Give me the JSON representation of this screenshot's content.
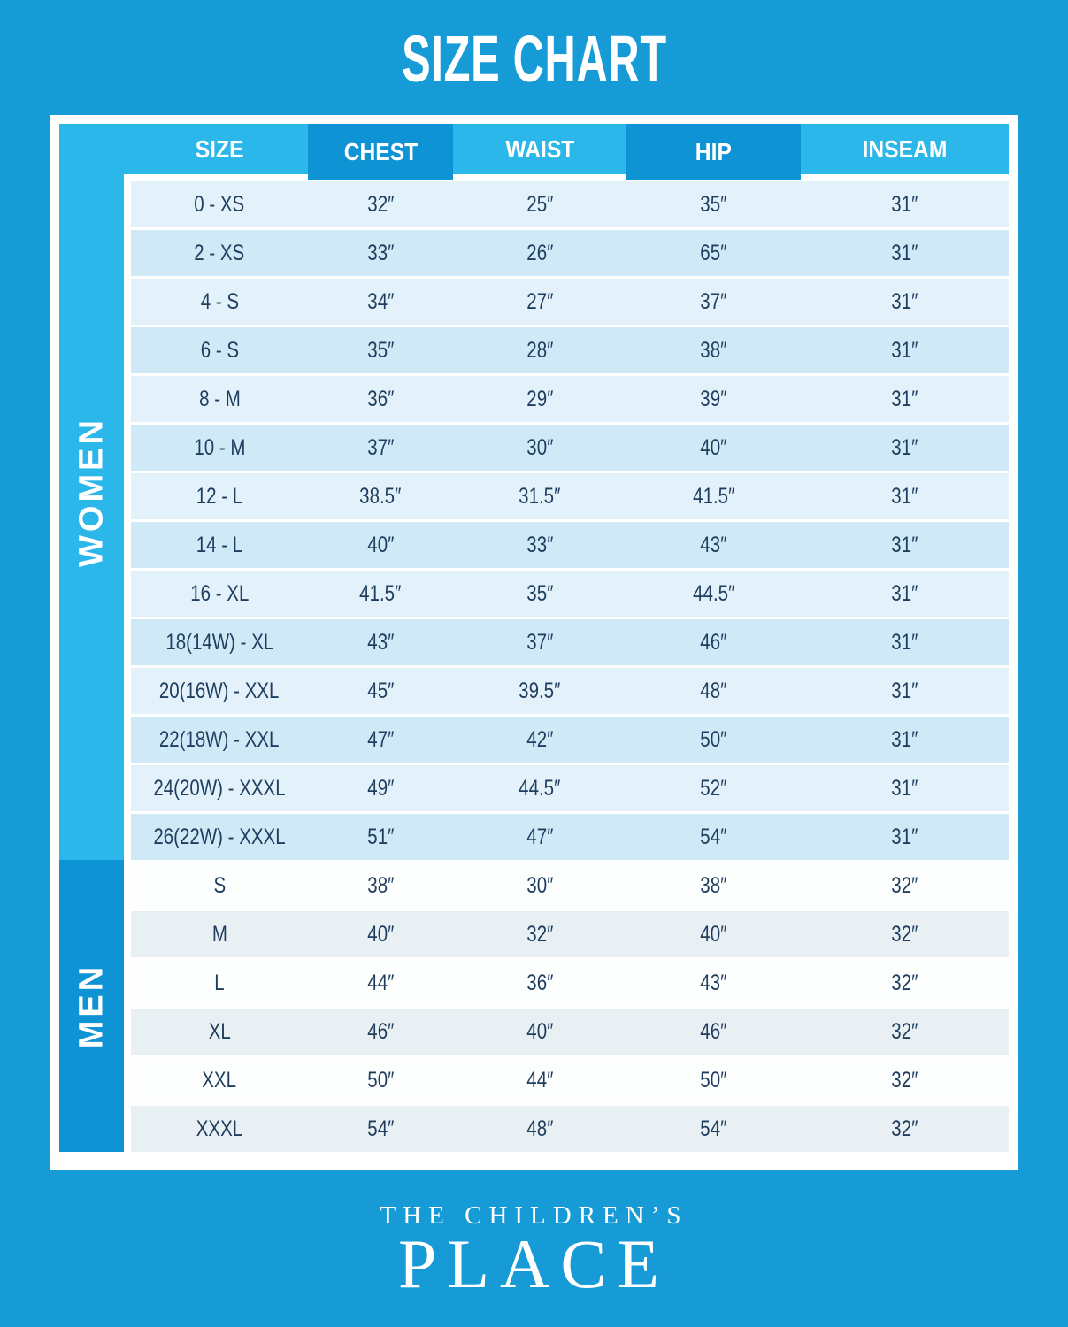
{
  "page": {
    "title": "SIZE CHART"
  },
  "footer": {
    "line1": "THE CHILDREN’S",
    "line2": "PLACE"
  },
  "colors": {
    "page_background": "#169BD7",
    "accent_light": "#2BB7E9",
    "accent_dark": "#0E93D4",
    "row_women_light": "#E3F2FA",
    "row_women_dark": "#CFE9F6",
    "row_men_light": "#FDFEFE",
    "row_men_dark": "#E9F0F4",
    "cell_text": "#1F3E5F",
    "header_text": "#FFFFFF"
  },
  "chart_data": {
    "type": "table",
    "title": "SIZE CHART",
    "columns": [
      "SIZE",
      "CHEST",
      "WAIST",
      "HIP",
      "INSEAM"
    ],
    "sections": [
      {
        "label": "WOMEN",
        "rows": [
          [
            "0 - XS",
            "32″",
            "25″",
            "35″",
            "31″"
          ],
          [
            "2 - XS",
            "33″",
            "26″",
            "65″",
            "31″"
          ],
          [
            "4 - S",
            "34″",
            "27″",
            "37″",
            "31″"
          ],
          [
            "6 - S",
            "35″",
            "28″",
            "38″",
            "31″"
          ],
          [
            "8 - M",
            "36″",
            "29″",
            "39″",
            "31″"
          ],
          [
            "10 - M",
            "37″",
            "30″",
            "40″",
            "31″"
          ],
          [
            "12 - L",
            "38.5″",
            "31.5″",
            "41.5″",
            "31″"
          ],
          [
            "14 - L",
            "40″",
            "33″",
            "43″",
            "31″"
          ],
          [
            "16 - XL",
            "41.5″",
            "35″",
            "44.5″",
            "31″"
          ],
          [
            "18(14W) - XL",
            "43″",
            "37″",
            "46″",
            "31″"
          ],
          [
            "20(16W) - XXL",
            "45″",
            "39.5″",
            "48″",
            "31″"
          ],
          [
            "22(18W) - XXL",
            "47″",
            "42″",
            "50″",
            "31″"
          ],
          [
            "24(20W) - XXXL",
            "49″",
            "44.5″",
            "52″",
            "31″"
          ],
          [
            "26(22W) - XXXL",
            "51″",
            "47″",
            "54″",
            "31″"
          ]
        ]
      },
      {
        "label": "MEN",
        "rows": [
          [
            "S",
            "38″",
            "30″",
            "38″",
            "32″"
          ],
          [
            "M",
            "40″",
            "32″",
            "40″",
            "32″"
          ],
          [
            "L",
            "44″",
            "36″",
            "43″",
            "32″"
          ],
          [
            "XL",
            "46″",
            "40″",
            "46″",
            "32″"
          ],
          [
            "XXL",
            "50″",
            "44″",
            "50″",
            "32″"
          ],
          [
            "XXXL",
            "54″",
            "48″",
            "54″",
            "32″"
          ]
        ]
      }
    ]
  }
}
